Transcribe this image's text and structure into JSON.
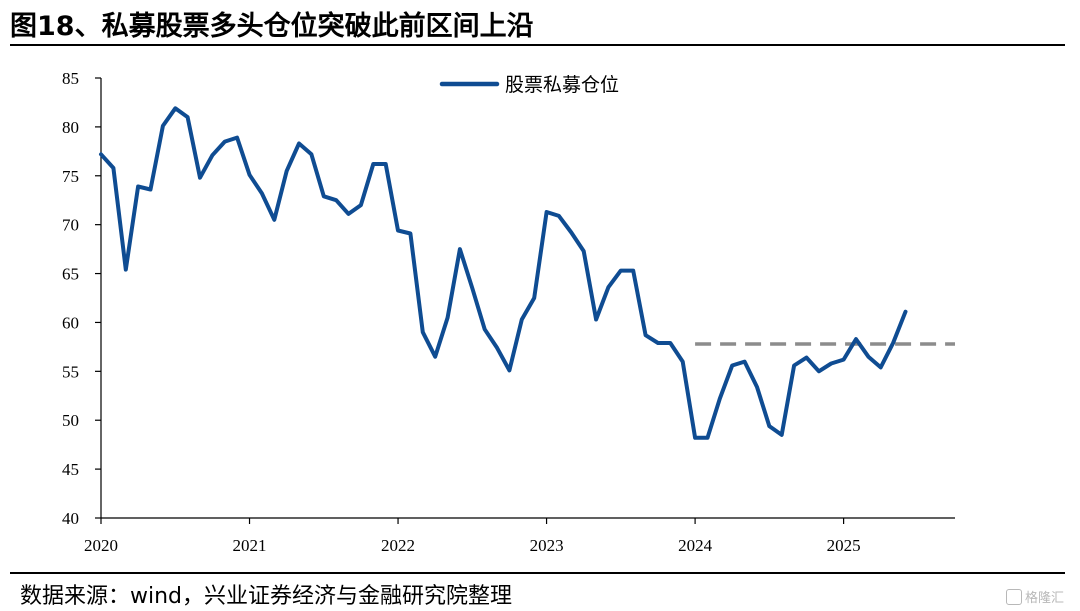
{
  "header": {
    "title": "图18、私募股票多头仓位突破此前区间上沿"
  },
  "footer": {
    "source": "数据来源：wind，兴业证券经济与金融研究院整理",
    "watermark": "格隆汇"
  },
  "colors": {
    "series": "#0f4c92",
    "reference_line": "#8c8c8c",
    "axis": "#000000"
  },
  "chart_data": {
    "type": "line",
    "title": "",
    "xlabel": "",
    "ylabel": "",
    "ylim": [
      40,
      85
    ],
    "yticks": [
      40,
      45,
      50,
      55,
      60,
      65,
      70,
      75,
      80,
      85
    ],
    "xlim": [
      "2020-01",
      "2025-10"
    ],
    "xtick_labels": [
      "2020",
      "2021",
      "2022",
      "2023",
      "2024",
      "2025"
    ],
    "legend_position": "top-center",
    "grid": false,
    "series": [
      {
        "name": "股票私募仓位",
        "x": [
          "2020-01",
          "2020-02",
          "2020-03",
          "2020-04",
          "2020-05",
          "2020-06",
          "2020-07",
          "2020-08",
          "2020-09",
          "2020-10",
          "2020-11",
          "2020-12",
          "2021-01",
          "2021-02",
          "2021-03",
          "2021-04",
          "2021-05",
          "2021-06",
          "2021-07",
          "2021-08",
          "2021-09",
          "2021-10",
          "2021-11",
          "2021-12",
          "2022-01",
          "2022-02",
          "2022-03",
          "2022-04",
          "2022-05",
          "2022-06",
          "2022-07",
          "2022-08",
          "2022-09",
          "2022-10",
          "2022-11",
          "2022-12",
          "2023-01",
          "2023-02",
          "2023-03",
          "2023-04",
          "2023-05",
          "2023-06",
          "2023-07",
          "2023-08",
          "2023-09",
          "2023-10",
          "2023-11",
          "2023-12",
          "2024-01",
          "2024-02",
          "2024-03",
          "2024-04",
          "2024-05",
          "2024-06",
          "2024-07",
          "2024-08",
          "2024-09",
          "2024-10",
          "2024-11",
          "2024-12",
          "2025-01",
          "2025-02",
          "2025-03",
          "2025-04",
          "2025-05",
          "2025-06"
        ],
        "values": [
          77.2,
          75.8,
          65.4,
          73.9,
          73.6,
          80.1,
          81.9,
          81.0,
          74.8,
          77.1,
          78.5,
          78.9,
          75.1,
          73.2,
          70.5,
          75.5,
          78.3,
          77.2,
          72.9,
          72.5,
          71.1,
          72.0,
          76.2,
          76.2,
          69.4,
          69.1,
          59.0,
          56.5,
          60.5,
          67.5,
          63.5,
          59.3,
          57.4,
          55.1,
          60.3,
          62.5,
          71.3,
          70.9,
          69.2,
          67.3,
          60.3,
          63.6,
          65.3,
          65.3,
          58.7,
          57.9,
          57.9,
          56.0,
          48.2,
          48.2,
          52.2,
          55.6,
          56.0,
          53.4,
          49.4,
          48.5,
          55.6,
          56.4,
          55.0,
          55.8,
          56.2,
          58.3,
          56.5,
          55.4,
          57.9,
          61.1
        ]
      }
    ],
    "reference_line": {
      "style": "dashed",
      "y": 57.8,
      "x_start": "2024-01",
      "x_end": "2025-10"
    }
  }
}
